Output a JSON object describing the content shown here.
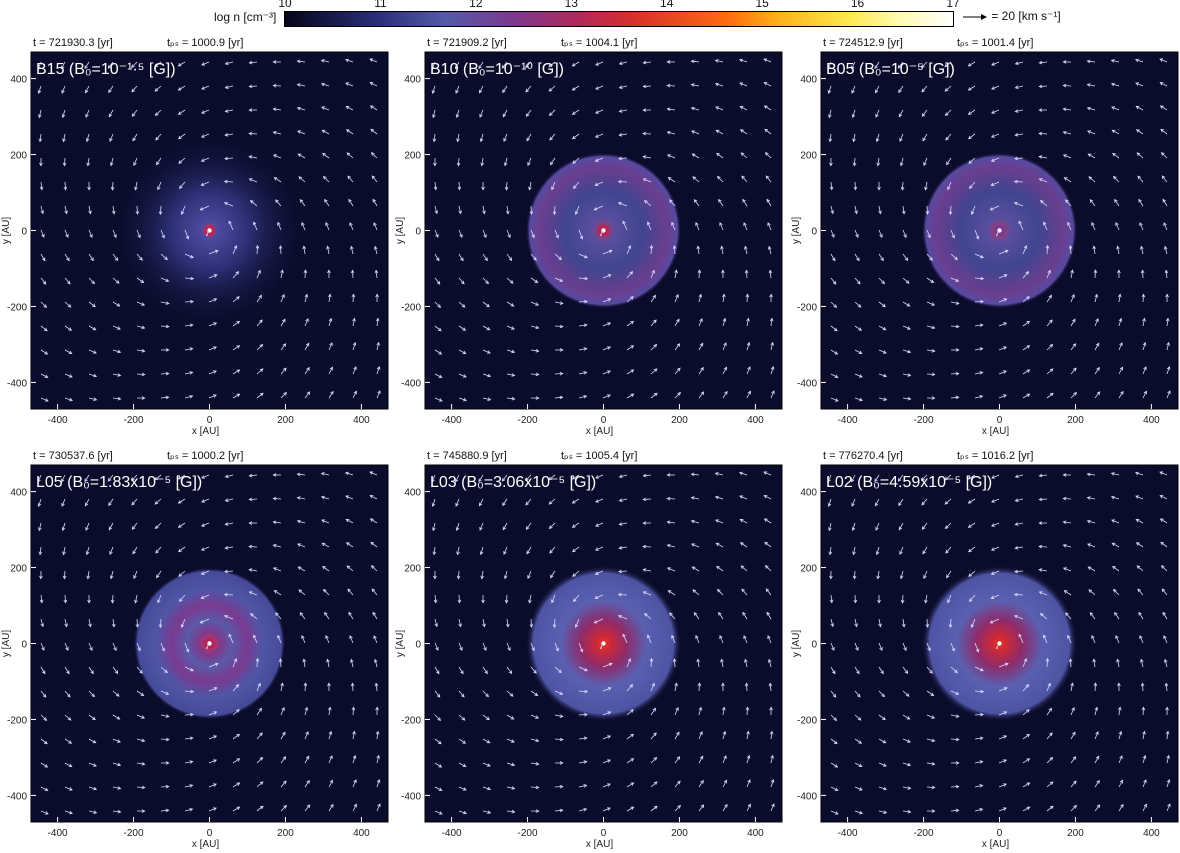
{
  "colorbar": {
    "label": "log n [cm⁻³]",
    "ticks": [
      "10",
      "11",
      "12",
      "13",
      "14",
      "15",
      "16",
      "17"
    ],
    "range": [
      10,
      17
    ],
    "colors": [
      "#05051a",
      "#2a2f78",
      "#555aa8",
      "#7a3a90",
      "#b1285a",
      "#d6302c",
      "#ff6a10",
      "#ffb21a",
      "#ffe84a",
      "#fffbb0",
      "#ffffff"
    ]
  },
  "velocity_key": "= 20 [km s⁻¹]",
  "chart_data": [
    {
      "type": "heatmap",
      "name": "B15",
      "label": "B15  (B₀=10⁻¹·⁵ [G])",
      "time": "t = 721930.3 [yr]",
      "tps": "tₚₛ = 1000.9 [yr]",
      "xlabel": "x [AU]",
      "ylabel": "y [AU]",
      "xticks": [
        "-400",
        "-200",
        "0",
        "200",
        "400"
      ],
      "yticks": [
        "400",
        "200",
        "0",
        "-200",
        "-400"
      ],
      "xlim": [
        -470,
        470
      ],
      "ylim": [
        -470,
        470
      ],
      "morphology": "spiral",
      "peak_log_n": 12.6
    },
    {
      "type": "heatmap",
      "name": "B10",
      "label": "B10  (B₀=10⁻¹⁰ [G])",
      "time": "t = 721909.2 [yr]",
      "tps": "tₚₛ = 1004.1 [yr]",
      "xlabel": "x [AU]",
      "ylabel": "y [AU]",
      "xticks": [
        "-400",
        "-200",
        "0",
        "200",
        "400"
      ],
      "yticks": [
        "400",
        "200",
        "0",
        "-200",
        "-400"
      ],
      "xlim": [
        -470,
        470
      ],
      "ylim": [
        -470,
        470
      ],
      "morphology": "ring",
      "peak_log_n": 12.6
    },
    {
      "type": "heatmap",
      "name": "B05",
      "label": "B05  (B₀=10⁻⁵ [G])",
      "time": "t = 724512.9 [yr]",
      "tps": "tₚₛ = 1001.4 [yr]",
      "xlabel": "x [AU]",
      "ylabel": "y [AU]",
      "xticks": [
        "-400",
        "-200",
        "0",
        "200",
        "400"
      ],
      "yticks": [
        "400",
        "200",
        "0",
        "-200",
        "-400"
      ],
      "xlim": [
        -470,
        470
      ],
      "ylim": [
        -470,
        470
      ],
      "morphology": "ring",
      "peak_log_n": 12.4
    },
    {
      "type": "heatmap",
      "name": "L05",
      "label": "L05  (B₀=1.83x10⁻⁵ [G])",
      "time": "t = 730537.6 [yr]",
      "tps": "tₚₛ = 1000.2 [yr]",
      "xlabel": "x [AU]",
      "ylabel": "y [AU]",
      "xticks": [
        "-400",
        "-200",
        "0",
        "200",
        "400"
      ],
      "yticks": [
        "400",
        "200",
        "0",
        "-200",
        "-400"
      ],
      "xlim": [
        -470,
        470
      ],
      "ylim": [
        -470,
        470
      ],
      "morphology": "rings",
      "peak_log_n": 12.8
    },
    {
      "type": "heatmap",
      "name": "L03",
      "label": "L03  (B₀=3.06x10⁻⁵ [G])",
      "time": "t = 745880.9 [yr]",
      "tps": "tₚₛ = 1005.4 [yr]",
      "xlabel": "x [AU]",
      "ylabel": "y [AU]",
      "xticks": [
        "-400",
        "-200",
        "0",
        "200",
        "400"
      ],
      "yticks": [
        "400",
        "200",
        "0",
        "-200",
        "-400"
      ],
      "xlim": [
        -470,
        470
      ],
      "ylim": [
        -470,
        470
      ],
      "morphology": "disk",
      "peak_log_n": 13.3
    },
    {
      "type": "heatmap",
      "name": "L02",
      "label": "L02  (B₀=4.59x10⁻⁵ [G])",
      "time": "t = 776270.4 [yr]",
      "tps": "tₚₛ = 1016.2 [yr]",
      "xlabel": "x [AU]",
      "ylabel": "y [AU]",
      "xticks": [
        "-400",
        "-200",
        "0",
        "200",
        "400"
      ],
      "yticks": [
        "400",
        "200",
        "0",
        "-200",
        "-400"
      ],
      "xlim": [
        -470,
        470
      ],
      "ylim": [
        -470,
        470
      ],
      "morphology": "disk",
      "peak_log_n": 13.5
    }
  ]
}
